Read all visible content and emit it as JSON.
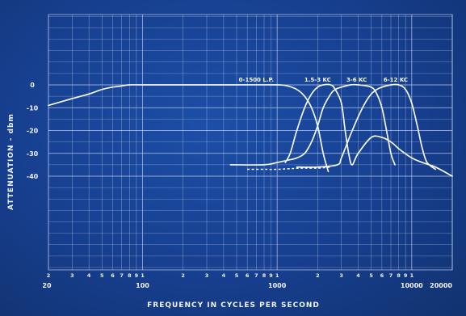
{
  "chart_data": {
    "type": "line",
    "title": "",
    "xlabel": "FREQUENCY IN CYCLES PER SECOND",
    "ylabel": "ATTENUATION - dbm",
    "x_scale": "log",
    "xlim": [
      20,
      20000
    ],
    "ylim": [
      -40,
      0
    ],
    "x_major_ticks": [
      {
        "value": 20,
        "label": "20"
      },
      {
        "value": 100,
        "label": "100"
      },
      {
        "value": 1000,
        "label": "1000"
      },
      {
        "value": 10000,
        "label": "10000"
      },
      {
        "value": 20000,
        "label": "20000"
      }
    ],
    "x_minor_ticks": [
      {
        "value": 20,
        "label": "2"
      },
      {
        "value": 30,
        "label": "3"
      },
      {
        "value": 40,
        "label": "4"
      },
      {
        "value": 50,
        "label": "5"
      },
      {
        "value": 60,
        "label": "6"
      },
      {
        "value": 70,
        "label": "7"
      },
      {
        "value": 80,
        "label": "8"
      },
      {
        "value": 90,
        "label": "9"
      },
      {
        "value": 100,
        "label": "1"
      },
      {
        "value": 200,
        "label": "2"
      },
      {
        "value": 300,
        "label": "3"
      },
      {
        "value": 400,
        "label": "4"
      },
      {
        "value": 500,
        "label": "5"
      },
      {
        "value": 600,
        "label": "6"
      },
      {
        "value": 700,
        "label": "7"
      },
      {
        "value": 800,
        "label": "8"
      },
      {
        "value": 900,
        "label": "9"
      },
      {
        "value": 1000,
        "label": "1"
      },
      {
        "value": 2000,
        "label": "2"
      },
      {
        "value": 3000,
        "label": "3"
      },
      {
        "value": 4000,
        "label": "4"
      },
      {
        "value": 5000,
        "label": "5"
      },
      {
        "value": 6000,
        "label": "6"
      },
      {
        "value": 7000,
        "label": "7"
      },
      {
        "value": 8000,
        "label": "8"
      },
      {
        "value": 9000,
        "label": "9"
      },
      {
        "value": 10000,
        "label": "1"
      }
    ],
    "y_ticks": [
      {
        "value": 0,
        "label": "0"
      },
      {
        "value": -10,
        "label": "-10"
      },
      {
        "value": -20,
        "label": "-20"
      },
      {
        "value": -30,
        "label": "-30"
      },
      {
        "value": -40,
        "label": "-40"
      }
    ],
    "grid": true,
    "series": [
      {
        "name": "0-1500 L.P.",
        "style": "solid",
        "x": [
          20,
          30,
          40,
          50,
          60,
          70,
          80,
          100,
          200,
          500,
          1000,
          1200,
          1400,
          1600,
          1800,
          2000,
          2200,
          2400
        ],
        "y": [
          -9,
          -6,
          -4,
          -2,
          -1,
          -0.5,
          0,
          0,
          0,
          0,
          0,
          -0.5,
          -2,
          -5,
          -10,
          -18,
          -30,
          -38
        ]
      },
      {
        "name": "1.5-3 KC",
        "style": "solid",
        "x": [
          1150,
          1250,
          1400,
          1600,
          1800,
          2000,
          2200,
          2500,
          2700,
          3000,
          3200,
          3400,
          3600,
          4000,
          5000,
          6000,
          7000,
          8000
        ],
        "y": [
          -34,
          -30,
          -20,
          -10,
          -4,
          -1,
          0,
          0,
          -2,
          -8,
          -20,
          -30,
          -35,
          -30,
          -23,
          -23,
          -25,
          -28
        ]
      },
      {
        "name": "3-6 KC",
        "style": "solid",
        "x": [
          450,
          800,
          1000,
          1200,
          1400,
          1600,
          1800,
          2000,
          2200,
          2500,
          2700,
          3000,
          3500,
          4000,
          5000,
          5500,
          6000,
          6500,
          7000,
          7500
        ],
        "y": [
          -35,
          -35,
          -34,
          -33,
          -32,
          -30,
          -25,
          -18,
          -10,
          -4,
          -2,
          -1,
          0,
          0,
          -1,
          -4,
          -10,
          -20,
          -30,
          -35
        ]
      },
      {
        "name": "6-12 KC",
        "style": "solid",
        "x": [
          1400,
          2000,
          2800,
          3000,
          3500,
          4000,
          4500,
          5000,
          5500,
          6000,
          7000,
          8000,
          9000,
          10000,
          11000,
          12000,
          13000,
          15000
        ],
        "y": [
          -36,
          -36,
          -35,
          -32,
          -22,
          -14,
          -8,
          -4,
          -2,
          -1,
          0,
          0,
          -2,
          -8,
          -18,
          -28,
          -34,
          -37
        ]
      },
      {
        "name": "",
        "style": "dashed",
        "x": [
          600,
          800,
          1000,
          1500,
          2000,
          2500
        ],
        "y": [
          -37,
          -37,
          -37,
          -36.5,
          -36.5,
          -36
        ]
      },
      {
        "name": "",
        "style": "solid",
        "x": [
          8000,
          10000,
          12000,
          15000,
          20000
        ],
        "y": [
          -28,
          -32,
          -34,
          -36,
          -40
        ]
      }
    ],
    "annotations": [
      {
        "text": "0-1500 L.P.",
        "x": 700,
        "y": 0
      },
      {
        "text": "1.5-3 KC",
        "x": 2000,
        "y": 0
      },
      {
        "text": "3-6 KC",
        "x": 3900,
        "y": 0
      },
      {
        "text": "6-12 KC",
        "x": 7600,
        "y": 0
      }
    ]
  }
}
